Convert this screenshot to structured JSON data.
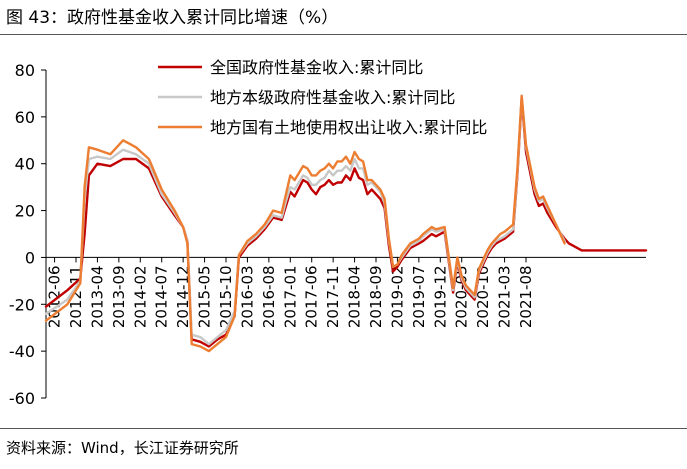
{
  "figure": {
    "title": "图 43：政府性基金收入累计同比增速（%）",
    "source": "资料来源：Wind，长江证券研究所"
  },
  "chart_data": {
    "type": "line",
    "title": "图 43：政府性基金收入累计同比增速（%）",
    "xlabel": "",
    "ylabel": "",
    "ylim": [
      -60,
      80
    ],
    "yticks": [
      80,
      60,
      40,
      20,
      0,
      -20,
      -40,
      -60
    ],
    "grid": false,
    "legend_position": "top-center",
    "x_tick_labels": [
      "2012-06",
      "2012-11",
      "2013-04",
      "2013-09",
      "2014-02",
      "2014-07",
      "2014-12",
      "2015-05",
      "2015-10",
      "2016-03",
      "2016-08",
      "2017-01",
      "2017-06",
      "2017-11",
      "2018-04",
      "2018-09",
      "2019-02",
      "2019-07",
      "2019-12",
      "2020-05",
      "2020-10",
      "2021-03",
      "2021-08"
    ],
    "series": [
      {
        "name": "全国政府性基金收入:累计同比",
        "color": "#c00000",
        "x": [
          0,
          5,
          8,
          9,
          10,
          12,
          15,
          18,
          21,
          24,
          27,
          30,
          32,
          33,
          34,
          36,
          38,
          40,
          42,
          44,
          45,
          47,
          49,
          51,
          53,
          55,
          56,
          57,
          58,
          60,
          61,
          62,
          63,
          64,
          65,
          66,
          67,
          68,
          69,
          70,
          71,
          72,
          73,
          74,
          75,
          76,
          77,
          78,
          79,
          80,
          81,
          82,
          83,
          85,
          86,
          87,
          88,
          90,
          91,
          93,
          95,
          96,
          97,
          98,
          99,
          100,
          101,
          102,
          103,
          104,
          105,
          106,
          107,
          109,
          110,
          111,
          112,
          114,
          115,
          116,
          117,
          119,
          121,
          122,
          123,
          124,
          125,
          126,
          127,
          128,
          129,
          130,
          131,
          133,
          134,
          135,
          137,
          138,
          139,
          140
        ],
        "values": [
          -21,
          -14,
          -9,
          10,
          35,
          40,
          39,
          42,
          42,
          38,
          26,
          18,
          13,
          7,
          -35,
          -36,
          -38,
          -35,
          -33,
          -25,
          0,
          5,
          8,
          12,
          17,
          16,
          22,
          28,
          26,
          33,
          32,
          29,
          27,
          30,
          31,
          33,
          31,
          32,
          32,
          35,
          33,
          38,
          34,
          33,
          27,
          29,
          27,
          25,
          21,
          5,
          -6,
          -4,
          -1,
          4,
          5,
          6,
          7,
          10,
          9,
          11,
          -15,
          -2,
          -10,
          -14,
          -16,
          -18,
          -7,
          -3,
          1,
          4,
          6,
          7,
          8,
          11,
          35,
          68,
          45,
          27,
          22,
          23,
          19,
          13,
          8,
          6,
          5,
          4,
          3,
          3,
          3,
          3,
          3,
          3,
          3,
          3,
          3,
          3,
          3,
          3,
          3,
          3
        ]
      },
      {
        "name": "地方本级政府性基金收入:累计同比",
        "color": "#c8c8c8",
        "x": [
          0,
          5,
          8,
          9,
          10,
          12,
          15,
          18,
          21,
          24,
          27,
          30,
          32,
          33,
          34,
          36,
          38,
          40,
          42,
          44,
          45,
          47,
          49,
          51,
          53,
          55,
          56,
          57,
          58,
          60,
          61,
          62,
          63,
          64,
          65,
          66,
          67,
          68,
          69,
          70,
          71,
          72,
          73,
          74,
          75,
          76,
          77,
          78,
          79,
          80,
          81,
          82,
          83,
          85,
          86,
          87,
          88,
          90,
          91,
          93,
          95,
          96,
          97,
          98,
          99,
          100,
          101,
          102,
          103,
          104,
          105,
          106,
          107,
          109,
          110,
          111,
          112,
          114,
          115,
          116,
          117,
          119,
          121
        ],
        "values": [
          -24,
          -18,
          -10,
          25,
          42,
          43,
          42,
          46,
          44,
          40,
          27,
          19,
          13,
          7,
          -33,
          -34,
          -37,
          -34,
          -31,
          -23,
          1,
          6,
          9,
          13,
          18,
          17,
          24,
          30,
          29,
          35,
          34,
          31,
          31,
          33,
          34,
          37,
          35,
          37,
          37,
          39,
          37,
          42,
          38,
          38,
          31,
          32,
          30,
          28,
          23,
          7,
          -4,
          -3,
          0,
          5,
          6,
          7,
          9,
          12,
          11,
          12,
          -14,
          -1,
          -9,
          -13,
          -15,
          -17,
          -6,
          -2,
          2,
          5,
          7,
          8,
          9,
          12,
          36,
          69,
          47,
          29,
          24,
          25,
          21,
          14,
          7
        ]
      },
      {
        "name": "地方国有土地使用权出让收入:累计同比",
        "color": "#ed7d31",
        "x": [
          0,
          5,
          8,
          9,
          10,
          12,
          15,
          18,
          21,
          24,
          27,
          30,
          32,
          33,
          34,
          36,
          38,
          40,
          42,
          44,
          45,
          47,
          49,
          51,
          53,
          55,
          56,
          57,
          58,
          60,
          61,
          62,
          63,
          64,
          65,
          66,
          67,
          68,
          69,
          70,
          71,
          72,
          73,
          74,
          75,
          76,
          77,
          78,
          79,
          80,
          81,
          82,
          83,
          85,
          86,
          87,
          88,
          90,
          91,
          93,
          95,
          96,
          97,
          98,
          99,
          100,
          101,
          102,
          103,
          104,
          105,
          106,
          107,
          109,
          110,
          111,
          112,
          114,
          115,
          116,
          117,
          119,
          121
        ],
        "values": [
          -27,
          -20,
          -11,
          30,
          47,
          46,
          44,
          50,
          47,
          42,
          29,
          20,
          13,
          6,
          -37,
          -38,
          -40,
          -37,
          -34,
          -25,
          1,
          7,
          10,
          14,
          20,
          19,
          27,
          35,
          33,
          39,
          38,
          35,
          35,
          37,
          38,
          40,
          38,
          41,
          41,
          43,
          40,
          45,
          42,
          41,
          33,
          33,
          31,
          29,
          25,
          8,
          -4,
          -3,
          1,
          6,
          7,
          8,
          10,
          13,
          12,
          13,
          -13,
          0,
          -8,
          -12,
          -14,
          -16,
          -5,
          -1,
          3,
          6,
          8,
          10,
          11,
          14,
          38,
          69,
          48,
          30,
          25,
          26,
          22,
          14,
          6
        ]
      }
    ]
  }
}
